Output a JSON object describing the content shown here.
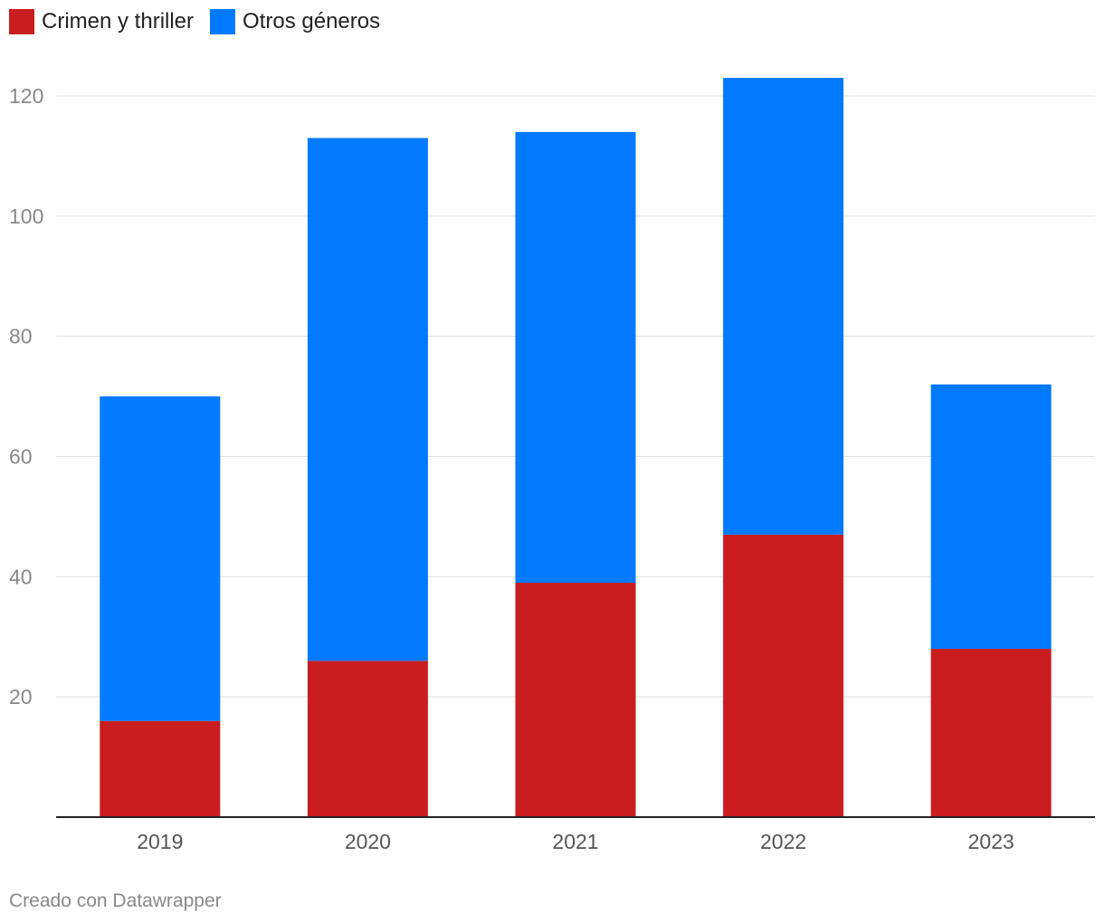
{
  "chart_data": {
    "type": "bar",
    "stacked": true,
    "categories": [
      "2019",
      "2020",
      "2021",
      "2022",
      "2023"
    ],
    "series": [
      {
        "name": "Crimen y thriller",
        "color": "#c91d1f",
        "values": [
          16,
          26,
          39,
          47,
          28
        ]
      },
      {
        "name": "Otros géneros",
        "color": "#027afe",
        "values": [
          54,
          87,
          75,
          76,
          44
        ]
      }
    ],
    "ylim": [
      0,
      120
    ],
    "yticks": [
      20,
      40,
      60,
      80,
      100,
      120
    ],
    "grid": true,
    "legend_position": "top-left"
  },
  "footer": {
    "credit": "Creado con Datawrapper"
  },
  "colors": {
    "grid": "#e0e0e0",
    "axis": "#222222",
    "tick_label": "#888888",
    "x_label": "#555555"
  }
}
